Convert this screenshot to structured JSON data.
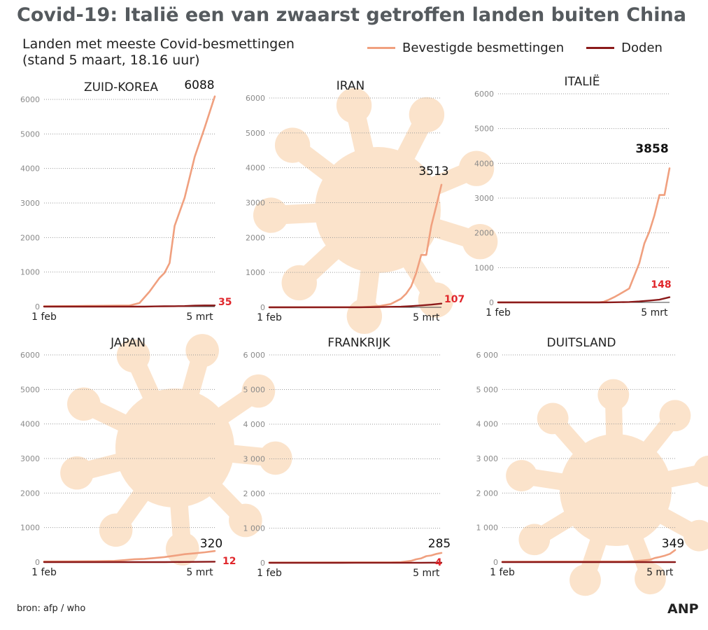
{
  "title": "Covid-19: Italië een van zwaarst getroffen landen buiten China",
  "subtitle": "Landen met meeste Covid-besmettingen (stand 5 maart, 18.16 uur)",
  "legend": {
    "confirmed": "Bevestigde besmettingen",
    "deaths": "Doden"
  },
  "colors": {
    "confirmed": "#f0a07f",
    "deaths": "#8b1a1a",
    "death_label": "#e0262b",
    "virus": "#fbe3cb",
    "title": "#555a5e"
  },
  "source": "bron:  afp / who",
  "agency": "ANP",
  "chart_data": [
    {
      "type": "line",
      "title": "ZUID-KOREA",
      "x_start_label": "1 feb",
      "x_end_label": "5 mrt",
      "ylim": [
        0,
        6000
      ],
      "yticks": [
        "0",
        "1000",
        "2000",
        "3000",
        "4000",
        "5000",
        "6000"
      ],
      "series": [
        {
          "name": "Bevestigde besmettingen",
          "x": [
            0,
            5,
            10,
            15,
            17,
            19,
            21,
            23,
            24,
            25,
            26,
            28,
            30,
            32,
            34
          ],
          "values": [
            11,
            15,
            23,
            28,
            31,
            104,
            433,
            833,
            977,
            1261,
            2337,
            3150,
            4335,
            5186,
            6088
          ]
        },
        {
          "name": "Doden",
          "x": [
            0,
            20,
            22,
            24,
            26,
            28,
            30,
            32,
            34
          ],
          "values": [
            0,
            1,
            7,
            10,
            13,
            17,
            28,
            35,
            35
          ]
        }
      ],
      "confirmed_label": "6088",
      "deaths_label": "35"
    },
    {
      "type": "line",
      "title": "IRAN",
      "x_start_label": "1 feb",
      "x_end_label": "5 mrt",
      "ylim": [
        0,
        6000
      ],
      "yticks": [
        "0",
        "1000",
        "2000",
        "3000",
        "4000",
        "5000",
        "6000"
      ],
      "series": [
        {
          "name": "Bevestigde besmettingen",
          "x": [
            0,
            18,
            20,
            22,
            24,
            26,
            27,
            28,
            29,
            30,
            31,
            32,
            33,
            34
          ],
          "values": [
            0,
            2,
            18,
            43,
            95,
            245,
            388,
            593,
            978,
            1501,
            1501,
            2336,
            2922,
            3513
          ]
        },
        {
          "name": "Doden",
          "x": [
            0,
            18,
            20,
            22,
            24,
            26,
            28,
            30,
            32,
            34
          ],
          "values": [
            0,
            2,
            4,
            8,
            15,
            19,
            34,
            54,
            77,
            107
          ]
        }
      ],
      "confirmed_label": "3513",
      "deaths_label": "107"
    },
    {
      "type": "line",
      "title": "ITALIË",
      "x_start_label": "1 feb",
      "x_end_label": "5 mrt",
      "ylim": [
        0,
        6000
      ],
      "yticks": [
        "0",
        "1000",
        "2000",
        "3000",
        "4000",
        "5000",
        "6000"
      ],
      "series": [
        {
          "name": "Bevestigde besmettingen",
          "x": [
            0,
            20,
            21,
            22,
            23,
            24,
            26,
            28,
            29,
            30,
            31,
            32,
            33,
            34
          ],
          "values": [
            2,
            3,
            20,
            79,
            150,
            229,
            400,
            1128,
            1694,
            2036,
            2502,
            3089,
            3089,
            3858
          ]
        },
        {
          "name": "Doden",
          "x": [
            0,
            20,
            22,
            24,
            26,
            28,
            30,
            32,
            34
          ],
          "values": [
            0,
            1,
            3,
            7,
            12,
            29,
            52,
            79,
            148
          ]
        }
      ],
      "confirmed_label": "3858",
      "deaths_label": "148"
    },
    {
      "type": "line",
      "title": "JAPAN",
      "x_start_label": "1 feb",
      "x_end_label": "5 mrt",
      "ylim": [
        0,
        6000
      ],
      "yticks": [
        "0",
        "1000",
        "2000",
        "3000",
        "4000",
        "5000",
        "6000"
      ],
      "series": [
        {
          "name": "Bevestigde besmettingen",
          "x": [
            0,
            5,
            10,
            14,
            16,
            18,
            20,
            22,
            24,
            26,
            28,
            30,
            32,
            34
          ],
          "values": [
            17,
            20,
            25,
            35,
            56,
            84,
            93,
            117,
            146,
            186,
            230,
            256,
            284,
            320
          ]
        },
        {
          "name": "Doden",
          "x": [
            0,
            12,
            18,
            24,
            28,
            30,
            32,
            34
          ],
          "values": [
            0,
            1,
            1,
            1,
            5,
            6,
            8,
            12
          ]
        }
      ],
      "confirmed_label": "320",
      "deaths_label": "12"
    },
    {
      "type": "line",
      "title": "FRANKRIJK",
      "x_start_label": "1 feb",
      "x_end_label": "5 mrt",
      "ylim": [
        0,
        6000
      ],
      "yticks": [
        "0",
        "1 000",
        "2 000",
        "3 000",
        "4 000",
        "5 000",
        "6 000"
      ],
      "series": [
        {
          "name": "Bevestigde besmettingen",
          "x": [
            0,
            10,
            20,
            24,
            26,
            28,
            29,
            30,
            31,
            32,
            33,
            34
          ],
          "values": [
            6,
            11,
            12,
            12,
            18,
            57,
            100,
            130,
            191,
            212,
            257,
            285
          ]
        },
        {
          "name": "Doden",
          "x": [
            0,
            14,
            26,
            28,
            30,
            32,
            34
          ],
          "values": [
            0,
            1,
            2,
            2,
            2,
            4,
            4
          ]
        }
      ],
      "confirmed_label": "285",
      "deaths_label": "4"
    },
    {
      "type": "line",
      "title": "DUITSLAND",
      "x_start_label": "1 feb",
      "x_end_label": "5 mrt",
      "ylim": [
        0,
        6000
      ],
      "yticks": [
        "0",
        "1 000",
        "2 000",
        "3 000",
        "4 000",
        "5 000",
        "6 000"
      ],
      "series": [
        {
          "name": "Bevestigde besmettingen",
          "x": [
            0,
            10,
            20,
            24,
            26,
            28,
            29,
            30,
            31,
            32,
            33,
            34
          ],
          "values": [
            8,
            14,
            16,
            16,
            26,
            53,
            66,
            117,
            150,
            188,
            240,
            349
          ]
        },
        {
          "name": "Doden",
          "x": [
            0,
            34
          ],
          "values": [
            0,
            0
          ]
        }
      ],
      "confirmed_label": "349",
      "deaths_label": ""
    }
  ]
}
